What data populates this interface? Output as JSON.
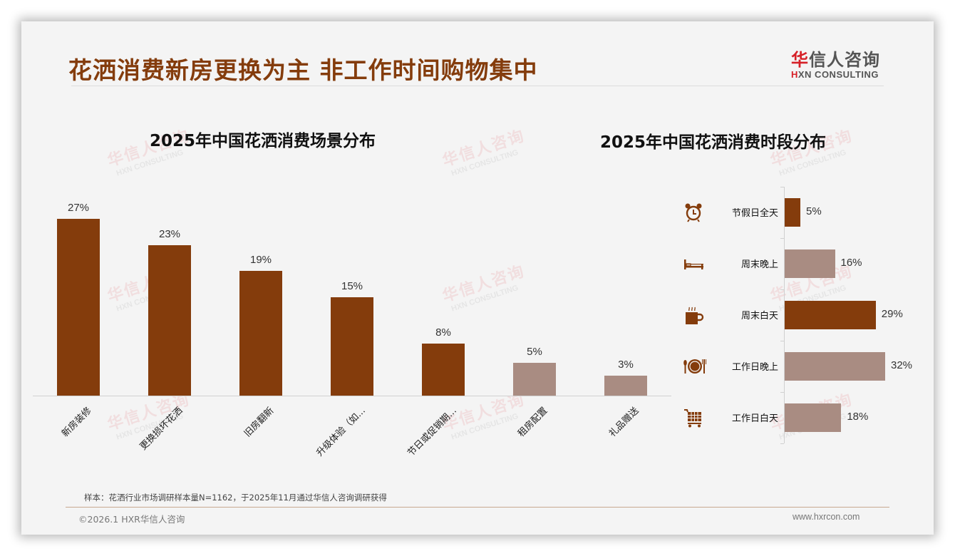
{
  "header": {
    "title": "花洒消费新房更换为主 非工作时间购物集中",
    "logo_cn_first": "华",
    "logo_cn_rest": "信人咨询",
    "logo_en_first": "H",
    "logo_en_rest": "XN CONSULTING"
  },
  "watermark": {
    "cn": "华信人咨询",
    "en": "HXN CONSULTING"
  },
  "colors": {
    "primary": "#843c0c",
    "secondary": "#a98c82",
    "title": "#843c0c",
    "logo_red": "#d62027"
  },
  "chart_data": [
    {
      "type": "bar",
      "title": "2025年中国花洒消费场景分布",
      "categories": [
        "新房装修",
        "更换损坏花洒",
        "旧房翻新",
        "升级体验（如...",
        "节日或促销期...",
        "租房配置",
        "礼品赠送"
      ],
      "values": [
        27,
        23,
        19,
        15,
        8,
        5,
        3
      ],
      "labels": [
        "27%",
        "23%",
        "19%",
        "15%",
        "8%",
        "5%",
        "3%"
      ],
      "bar_colors": [
        "#843c0c",
        "#843c0c",
        "#843c0c",
        "#843c0c",
        "#843c0c",
        "#a98c82",
        "#a98c82"
      ],
      "xlabel": "",
      "ylabel": "",
      "ylim": [
        0,
        30
      ],
      "grid": false,
      "legend": "none",
      "unit": "%"
    },
    {
      "type": "bar",
      "orientation": "horizontal",
      "title": "2025年中国花洒消费时段分布",
      "categories": [
        "节假日全天",
        "周末晚上",
        "周末白天",
        "工作日晚上",
        "工作日白天"
      ],
      "values": [
        5,
        16,
        29,
        32,
        18
      ],
      "labels": [
        "5%",
        "16%",
        "29%",
        "32%",
        "18%"
      ],
      "icons": [
        "alarm-clock-icon",
        "bed-icon",
        "coffee-cup-icon",
        "dinner-plate-icon",
        "shopping-cart-icon"
      ],
      "bar_colors": [
        "#843c0c",
        "#a98c82",
        "#843c0c",
        "#a98c82",
        "#a98c82"
      ],
      "xlabel": "",
      "ylabel": "",
      "xlim": [
        0,
        35
      ],
      "grid": false,
      "legend": "none",
      "unit": "%"
    }
  ],
  "footer": {
    "note": "样本：花洒行业市场调研样本量N=1162，于2025年11月通过华信人咨询调研获得",
    "copyright": "©2026.1 HXR华信人咨询",
    "website": "www.hxrcon.com"
  }
}
